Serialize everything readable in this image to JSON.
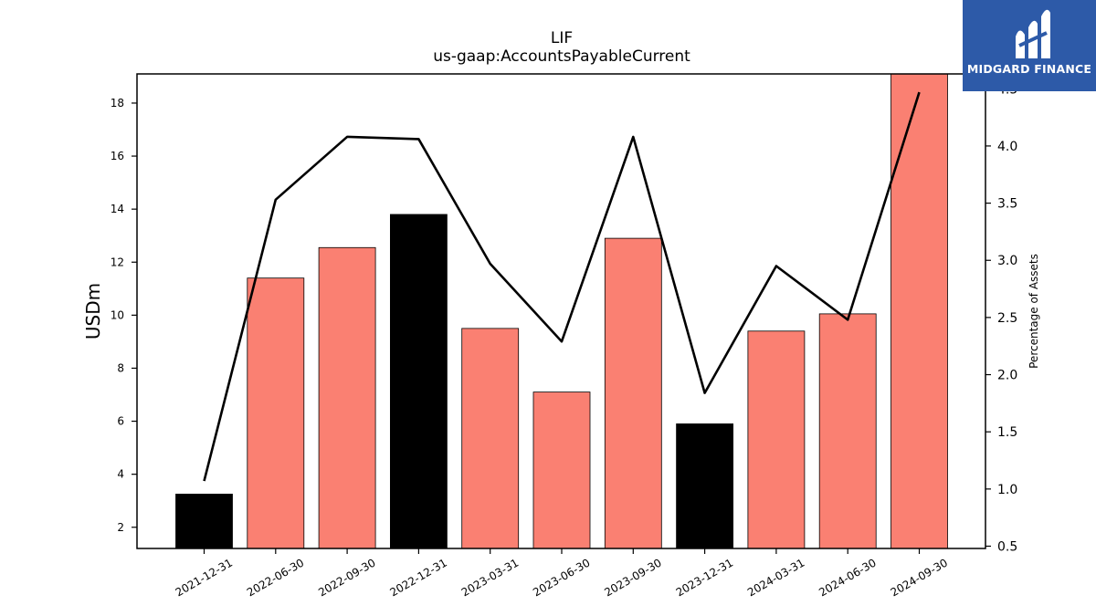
{
  "chart_data": {
    "type": "bar",
    "title": "LIF",
    "subtitle": "us-gaap:AccountsPayableCurrent",
    "ylabel": "USDm",
    "y2label": "Percentage of Assets",
    "categories": [
      "2021-12-31",
      "2022-06-30",
      "2022-09-30",
      "2022-12-31",
      "2023-03-31",
      "2023-06-30",
      "2023-09-30",
      "2023-12-31",
      "2024-03-31",
      "2024-06-30",
      "2024-09-30"
    ],
    "bars": {
      "name": "USDm",
      "values": [
        3.25,
        11.4,
        12.55,
        13.8,
        9.5,
        7.1,
        12.9,
        5.9,
        9.4,
        10.05,
        19.1
      ],
      "colors": [
        "#000000",
        "#fa8072",
        "#fa8072",
        "#000000",
        "#fa8072",
        "#fa8072",
        "#fa8072",
        "#000000",
        "#fa8072",
        "#fa8072",
        "#fa8072"
      ]
    },
    "line": {
      "name": "Percentage of Assets",
      "values": [
        1.07,
        3.53,
        4.08,
        4.06,
        2.97,
        2.29,
        4.08,
        1.84,
        2.95,
        2.48,
        4.47
      ],
      "color": "#000000"
    },
    "ylim": [
      1.2,
      19.1
    ],
    "y2lim": [
      0.48,
      4.63
    ],
    "yticks": [
      2,
      4,
      6,
      8,
      10,
      12,
      14,
      16,
      18
    ],
    "y2ticks": [
      "0.5",
      "1.0",
      "1.5",
      "2.0",
      "2.5",
      "3.0",
      "3.5",
      "4.0",
      "4.5"
    ],
    "grid": false,
    "legend": "none"
  },
  "logo": {
    "text": "MIDGARD FINANCE",
    "color": "#2d5aa8"
  }
}
